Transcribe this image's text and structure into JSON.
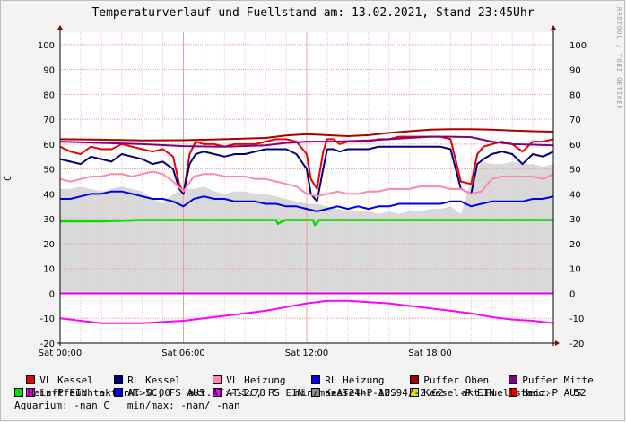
{
  "title": "Temperaturverlauf und Fuellstand am: 13.02.2021, Stand 23:45Uhr",
  "watermark": "RRDTOOL / TOBI OETIKER",
  "chart_data": {
    "type": "line",
    "ylabel": "C",
    "ylim": [
      -20,
      105
    ],
    "xlim_hours": [
      0,
      24
    ],
    "yticks": [
      "-20",
      "-10",
      "0",
      "10",
      "20",
      "30",
      "40",
      "50",
      "60",
      "70",
      "80",
      "90",
      "100"
    ],
    "xticks": [
      "Sat 00:00",
      "Sat 06:00",
      "Sat 12:00",
      "Sat 18:00"
    ],
    "xtick_hours": [
      0,
      6,
      12,
      18
    ],
    "grid": true,
    "legend_position": "bottom",
    "fill_level_area": {
      "name": "Kessel-P AUS",
      "color": "#d9d9d9",
      "x_hours": [
        0,
        0.5,
        1,
        1.5,
        2,
        2.5,
        3,
        3.5,
        4,
        4.5,
        5,
        5.5,
        6,
        6.5,
        7,
        7.5,
        8,
        8.5,
        9,
        9.5,
        10,
        10.5,
        11,
        11.5,
        12,
        12.5,
        13,
        13.5,
        14,
        14.5,
        15,
        15.5,
        16,
        16.5,
        17,
        17.5,
        18,
        18.5,
        19,
        19.5,
        20,
        20.5,
        21,
        21.5,
        22,
        22.5,
        23,
        23.5,
        24
      ],
      "values": [
        42,
        42,
        43,
        42,
        41,
        42,
        43,
        42,
        41,
        38,
        36,
        40,
        42,
        42,
        43,
        41,
        40,
        41,
        41,
        40,
        40,
        39,
        38,
        37,
        36,
        36,
        35,
        34,
        33,
        33,
        33,
        32,
        33,
        32,
        33,
        33,
        34,
        34,
        35,
        32,
        45,
        53,
        52,
        52,
        53,
        52,
        52,
        51,
        52
      ]
    },
    "series": [
      {
        "name": "VL Kessel",
        "color": "#ee0000",
        "width": 2,
        "x": [
          0,
          0.5,
          1,
          1.5,
          2,
          2.5,
          3,
          3.5,
          4,
          4.5,
          5,
          5.5,
          5.8,
          6,
          6.3,
          6.6,
          7,
          7.5,
          8,
          8.5,
          9,
          9.5,
          10,
          10.5,
          11,
          11.5,
          12,
          12.2,
          12.5,
          12.8,
          13,
          13.3,
          13.6,
          14,
          14.5,
          15,
          15.5,
          16,
          16.5,
          17,
          17.5,
          18,
          18.5,
          19,
          19.5,
          20,
          20.3,
          20.6,
          21,
          21.5,
          22,
          22.5,
          23,
          23.5,
          24
        ],
        "values": [
          59,
          57,
          56,
          59,
          58,
          58,
          60,
          59,
          58,
          57,
          58,
          55,
          44,
          40,
          56,
          61,
          60,
          60,
          59,
          60,
          60,
          60,
          61,
          62,
          62,
          61,
          56,
          46,
          42,
          57,
          62,
          62,
          60,
          61,
          61,
          61,
          62,
          62,
          63,
          63,
          63,
          63,
          63,
          62,
          45,
          44,
          56,
          59,
          60,
          61,
          60,
          57,
          61,
          61,
          62
        ]
      },
      {
        "name": "RL Kessel",
        "color": "#000080",
        "width": 2,
        "x": [
          0,
          0.5,
          1,
          1.5,
          2,
          2.5,
          3,
          3.5,
          4,
          4.5,
          5,
          5.5,
          5.8,
          6,
          6.3,
          6.6,
          7,
          7.5,
          8,
          8.5,
          9,
          9.5,
          10,
          10.5,
          11,
          11.5,
          12,
          12.2,
          12.5,
          12.8,
          13,
          13.3,
          13.6,
          14,
          14.5,
          15,
          15.5,
          16,
          16.5,
          17,
          17.5,
          18,
          18.5,
          19,
          19.5,
          20,
          20.3,
          20.6,
          21,
          21.5,
          22,
          22.5,
          23,
          23.5,
          24
        ],
        "values": [
          54,
          53,
          52,
          55,
          54,
          53,
          56,
          55,
          54,
          52,
          53,
          50,
          42,
          40,
          52,
          56,
          57,
          56,
          55,
          56,
          56,
          57,
          58,
          58,
          58,
          56,
          50,
          40,
          37,
          50,
          58,
          58,
          57,
          58,
          58,
          58,
          59,
          59,
          59,
          59,
          59,
          59,
          59,
          58,
          42,
          40,
          52,
          54,
          56,
          57,
          56,
          52,
          56,
          55,
          57
        ]
      },
      {
        "name": "VL Heizung",
        "color": "#ff88aa",
        "width": 2,
        "x": [
          0,
          0.5,
          1,
          1.5,
          2,
          2.5,
          3,
          3.5,
          4,
          4.5,
          5,
          5.5,
          6,
          6.5,
          7,
          7.5,
          8,
          8.5,
          9,
          9.5,
          10,
          10.5,
          11,
          11.5,
          12,
          12.5,
          13,
          13.5,
          14,
          14.5,
          15,
          15.5,
          16,
          16.5,
          17,
          17.5,
          18,
          18.5,
          19,
          19.5,
          20,
          20.5,
          21,
          21.5,
          22,
          22.5,
          23,
          23.5,
          24
        ],
        "values": [
          46,
          45,
          46,
          47,
          47,
          48,
          48,
          47,
          48,
          49,
          48,
          45,
          41,
          47,
          48,
          48,
          47,
          47,
          47,
          46,
          46,
          45,
          44,
          43,
          40,
          39,
          40,
          41,
          40,
          40,
          41,
          41,
          42,
          42,
          42,
          43,
          43,
          43,
          42,
          42,
          40,
          41,
          46,
          47,
          47,
          47,
          47,
          46,
          48
        ]
      },
      {
        "name": "RL Heizung",
        "color": "#0000ee",
        "width": 2,
        "x": [
          0,
          0.5,
          1,
          1.5,
          2,
          2.5,
          3,
          3.5,
          4,
          4.5,
          5,
          5.5,
          6,
          6.5,
          7,
          7.5,
          8,
          8.5,
          9,
          9.5,
          10,
          10.5,
          11,
          11.5,
          12,
          12.5,
          13,
          13.5,
          14,
          14.5,
          15,
          15.5,
          16,
          16.5,
          17,
          17.5,
          18,
          18.5,
          19,
          19.5,
          20,
          20.5,
          21,
          21.5,
          22,
          22.5,
          23,
          23.5,
          24
        ],
        "values": [
          38,
          38,
          39,
          40,
          40,
          41,
          41,
          40,
          39,
          38,
          38,
          37,
          35,
          38,
          39,
          38,
          38,
          37,
          37,
          37,
          36,
          36,
          35,
          35,
          34,
          33,
          34,
          35,
          34,
          35,
          34,
          35,
          35,
          36,
          36,
          36,
          36,
          36,
          37,
          37,
          35,
          36,
          37,
          37,
          37,
          37,
          38,
          38,
          39
        ]
      },
      {
        "name": "Puffer Oben",
        "color": "#aa0000",
        "width": 2,
        "x": [
          0,
          2,
          4,
          6,
          8,
          10,
          11,
          12,
          13,
          14,
          15,
          16,
          17,
          18,
          19,
          20,
          21,
          22,
          23,
          24
        ],
        "values": [
          62,
          61.8,
          61.5,
          61.6,
          62,
          62.5,
          63.5,
          64,
          63.6,
          63.2,
          63.6,
          64.5,
          65.2,
          65.8,
          66,
          66,
          65.8,
          65.5,
          65.2,
          65
        ]
      },
      {
        "name": "Puffer Mitte",
        "color": "#800080",
        "width": 2,
        "x": [
          0,
          2,
          4,
          6,
          8,
          10,
          11,
          12,
          13,
          14,
          15,
          16,
          17,
          18,
          19,
          20,
          21,
          22,
          23,
          24
        ],
        "values": [
          61,
          60.5,
          60,
          59.2,
          59,
          59.5,
          60.5,
          61,
          61,
          61.2,
          61.5,
          62,
          62.5,
          63,
          63,
          62.8,
          61,
          60,
          59.8,
          59.5
        ]
      },
      {
        "name": "Heiz-P EIN",
        "color": "#00e000",
        "width": 2.5,
        "x": [
          0,
          2,
          4,
          6,
          8,
          10,
          10.5,
          10.6,
          10.8,
          11,
          12,
          12.3,
          12.4,
          12.6,
          13,
          14,
          16,
          18,
          20,
          22,
          24
        ],
        "values": [
          29,
          29,
          29.5,
          29.5,
          29.5,
          29.5,
          29.5,
          28,
          29,
          29.5,
          29.5,
          29.5,
          27.5,
          29.5,
          29.5,
          29.5,
          29.5,
          29.5,
          29.5,
          29.5,
          29.5
        ]
      },
      {
        "name": "Luftfeuchte",
        "color": "#ff00ff",
        "width": 2,
        "x": [
          0,
          24
        ],
        "values": [
          0,
          0
        ]
      },
      {
        "name": "AT<2C, FS EIN",
        "color": "#ff00ff",
        "width": 2,
        "x": [
          0,
          1,
          2,
          3,
          4,
          5,
          6,
          7,
          8,
          9,
          10,
          11,
          12,
          13,
          14,
          15,
          16,
          17,
          18,
          19,
          20,
          21,
          22,
          23,
          24
        ],
        "values": [
          -10,
          -11,
          -12,
          -12,
          -12,
          -11.5,
          -11,
          -10,
          -9,
          -8,
          -7,
          -5.5,
          -4,
          -3,
          -3,
          -3.5,
          -4,
          -5,
          -6,
          -7,
          -8,
          -9.5,
          -10.5,
          -11,
          -12
        ]
      }
    ]
  },
  "legend": {
    "rows": [
      [
        {
          "label": "VL Kessel",
          "color": "#ee0000"
        },
        {
          "label": "RL Kessel",
          "color": "#000080"
        },
        {
          "label": "VL Heizung",
          "color": "#ff88aa"
        },
        {
          "label": "RL Heizung",
          "color": "#0000ee"
        },
        {
          "label": "Puffer Oben",
          "color": "#aa0000"
        },
        {
          "label": "Puffer Mitte",
          "color": "#800080"
        }
      ],
      [
        {
          "label": "Luftfeuchte",
          "color": "#ff00ff"
        },
        {
          "label": "AT>5C, FS AUS",
          "color": "#0000ee"
        },
        {
          "label": "AT<2C, FS EIN",
          "color": "#ff00ff"
        },
        {
          "label": "Kessel-P AUS",
          "color": "#909090"
        },
        {
          "label": "Kessel-P EIN",
          "color": "#dddd00"
        },
        {
          "label": "Heiz-P AUS",
          "color": "#ee0000"
        }
      ]
    ],
    "row3_item": {
      "label": "Heiz-P EIN",
      "color": "#00e000"
    },
    "row3_text": "akt.rH: 0.00   akt.AT:-11.78 C   min/maxAT24h:-12.94/-2.62   akt.Fuellstand:    52",
    "row4_text": "Aquarium: -nan C   min/max: -nan/ -nan"
  }
}
